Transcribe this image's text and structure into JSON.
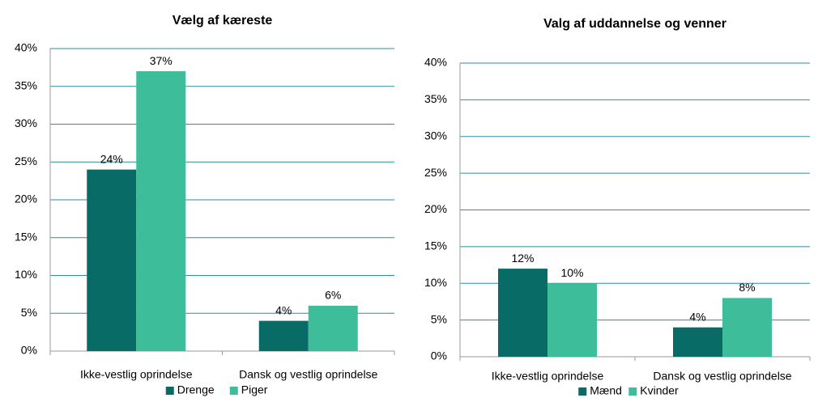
{
  "chart_data": [
    {
      "type": "bar",
      "title": "Vælg af kæreste",
      "categories": [
        "Ikke-vestlig oprindelse",
        "Dansk og vestlig oprindelse"
      ],
      "series": [
        {
          "name": "Drenge",
          "color": "#086b65",
          "values": [
            24,
            4
          ],
          "value_labels": [
            "24%",
            "4%"
          ]
        },
        {
          "name": "Piger",
          "color": "#3dbd9a",
          "values": [
            37,
            6
          ],
          "value_labels": [
            "37%",
            "6%"
          ]
        }
      ],
      "ylim": [
        0,
        40
      ],
      "yticks": [
        {
          "value": 0,
          "label": "0%"
        },
        {
          "value": 5,
          "label": "5%"
        },
        {
          "value": 10,
          "label": "10%"
        },
        {
          "value": 15,
          "label": "15%"
        },
        {
          "value": 20,
          "label": "20%"
        },
        {
          "value": 25,
          "label": "25%"
        },
        {
          "value": 30,
          "label": "30%"
        },
        {
          "value": 35,
          "label": "35%"
        },
        {
          "value": 40,
          "label": "40%"
        }
      ],
      "grid": true,
      "legend": "bottom"
    },
    {
      "type": "bar",
      "title": "Valg af uddannelse og venner",
      "categories": [
        "Ikke-vestlig oprindelse",
        "Dansk og vestlig oprindelse"
      ],
      "series": [
        {
          "name": "Mænd",
          "color": "#086b65",
          "values": [
            12,
            4
          ],
          "value_labels": [
            "12%",
            "4%"
          ]
        },
        {
          "name": "Kvinder",
          "color": "#3dbd9a",
          "values": [
            10,
            8
          ],
          "value_labels": [
            "10%",
            "8%"
          ]
        }
      ],
      "ylim": [
        0,
        40
      ],
      "yticks": [
        {
          "value": 0,
          "label": "0%"
        },
        {
          "value": 5,
          "label": "5%"
        },
        {
          "value": 10,
          "label": "10%"
        },
        {
          "value": 15,
          "label": "15%"
        },
        {
          "value": 20,
          "label": "20%"
        },
        {
          "value": 25,
          "label": "25%"
        },
        {
          "value": 30,
          "label": "30%"
        },
        {
          "value": 35,
          "label": "35%"
        },
        {
          "value": 40,
          "label": "40%"
        }
      ],
      "grid": true,
      "legend": "bottom"
    }
  ]
}
